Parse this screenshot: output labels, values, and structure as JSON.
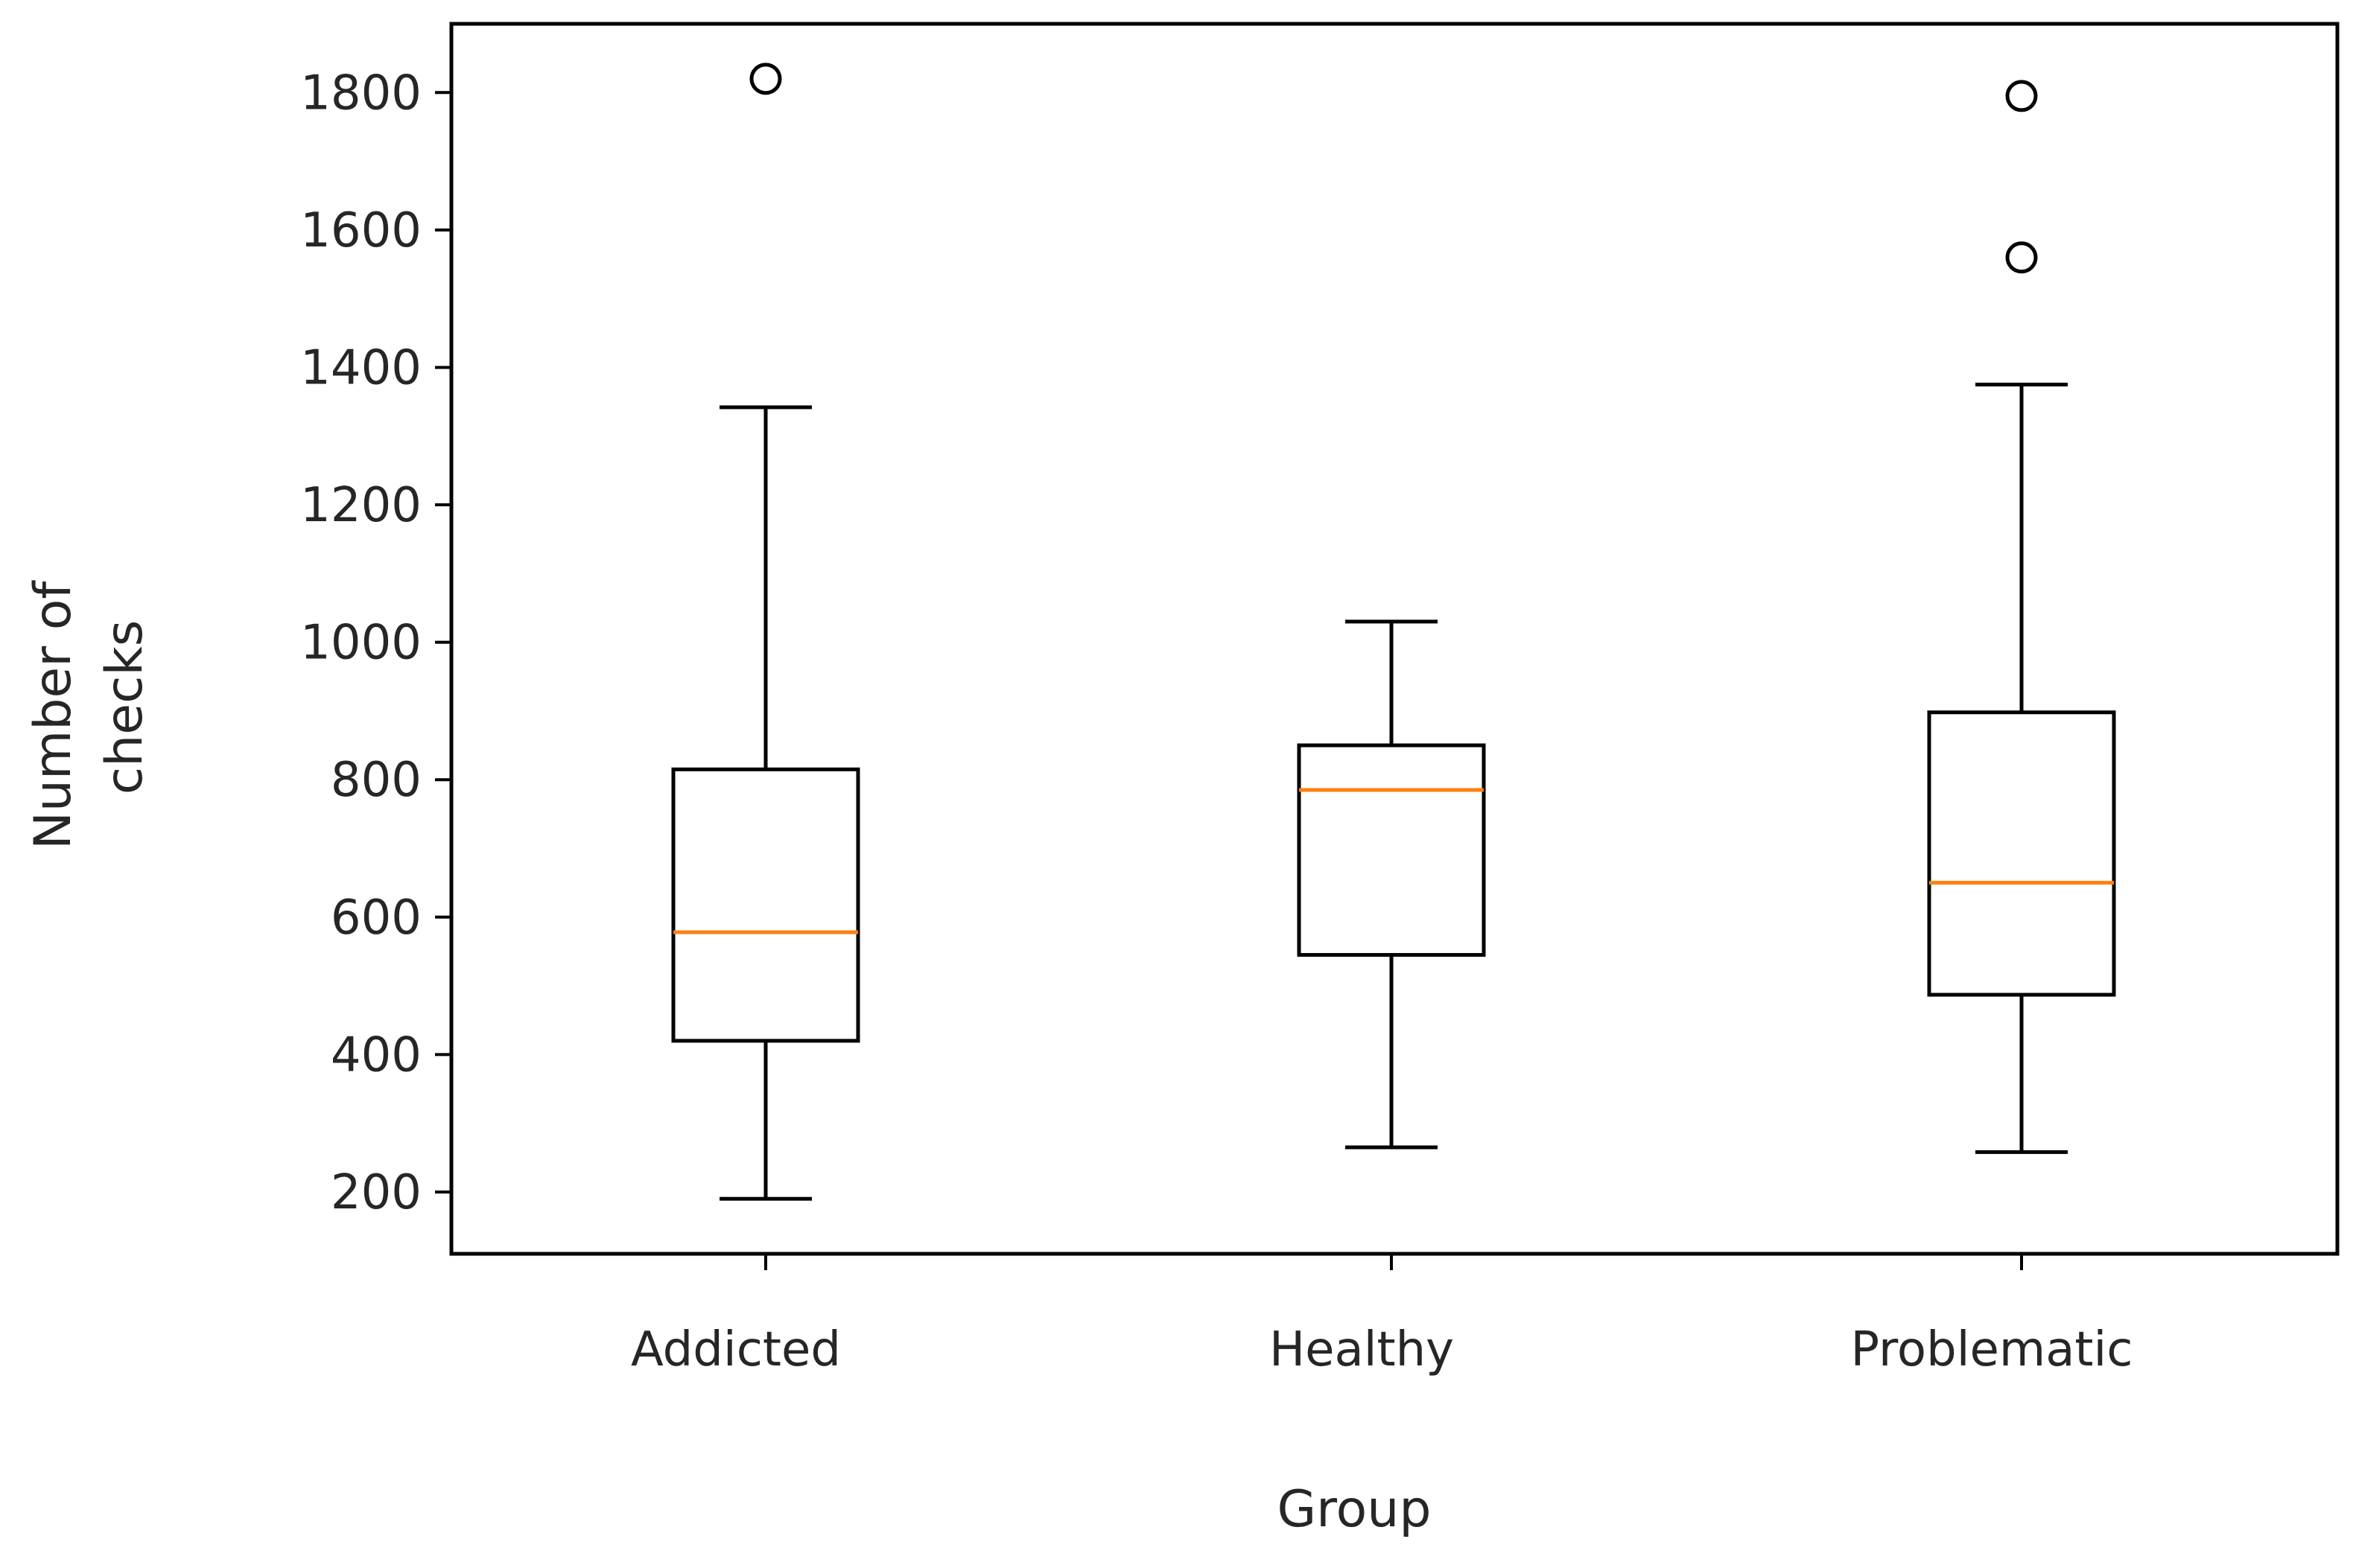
{
  "chart_data": {
    "type": "boxplot",
    "title": "",
    "xlabel": "Group",
    "ylabel_lines": [
      "Number of",
      "checks"
    ],
    "ylim": [
      110,
      1900
    ],
    "yticks": [
      200,
      400,
      600,
      800,
      1000,
      1200,
      1400,
      1600,
      1800
    ],
    "ytick_labels": [
      "200",
      "400",
      "600",
      "800",
      "1000",
      "1200",
      "1400",
      "1600",
      "1800"
    ],
    "categories": [
      "Addicted",
      "Healthy",
      "Problematic"
    ],
    "boxes": [
      {
        "name": "Addicted",
        "whisker_low": 190,
        "q1": 420,
        "median": 578,
        "q3": 815,
        "whisker_high": 1342,
        "outliers": [
          1820
        ]
      },
      {
        "name": "Healthy",
        "whisker_low": 265,
        "q1": 545,
        "median": 785,
        "q3": 850,
        "whisker_high": 1030,
        "outliers": []
      },
      {
        "name": "Problematic",
        "whisker_low": 258,
        "q1": 487,
        "median": 650,
        "q3": 898,
        "whisker_high": 1375,
        "outliers": [
          1560,
          1795
        ]
      }
    ],
    "colors": {
      "box": "#000000",
      "median": "#ff7f0e",
      "axis": "#000000",
      "text": "#262626"
    },
    "grid": false,
    "legend": "none"
  }
}
